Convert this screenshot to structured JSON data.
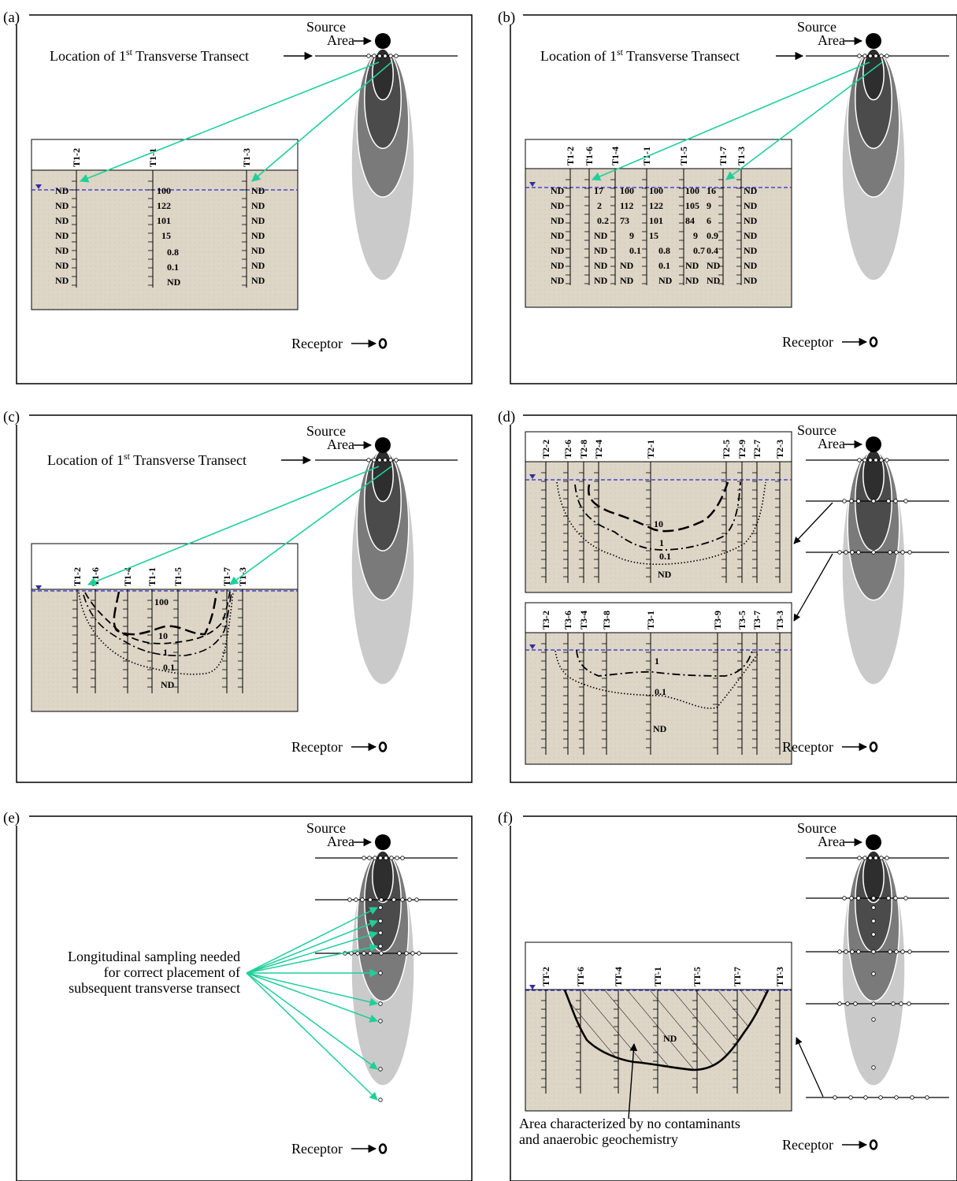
{
  "colors": {
    "soil": "#ddd5c6",
    "arrow_cyan": "#1fcf9a",
    "water_table": "#2a2ad0",
    "plume": [
      "#cacaca",
      "#7a7a7a",
      "#4b4b4b",
      "#2e2e2e"
    ]
  },
  "labels": {
    "source_top": "Source",
    "source_bottom": "Area",
    "receptor": "Receptor",
    "transect": "Location of 1",
    "transect_sup": "st",
    "transect_tail": " Transverse Transect",
    "long_1": "Longitudinal sampling needed",
    "long_2": "for correct placement of",
    "long_3": "subsequent transverse transect",
    "area_1": "Area characterized by no contaminants",
    "area_2": "and anaerobic geochemistry"
  },
  "panels": [
    {
      "letter": "(a)"
    },
    {
      "letter": "(b)"
    },
    {
      "letter": "(c)"
    },
    {
      "letter": "(d)"
    },
    {
      "letter": "(e)"
    },
    {
      "letter": "(f)"
    }
  ],
  "a": {
    "wells": [
      "T1-2",
      "T1-1",
      "T1-3"
    ],
    "values": {
      "T1-2": [
        "ND",
        "ND",
        "ND",
        "ND",
        "ND",
        "ND",
        "ND"
      ],
      "T1-1": [
        "100",
        "122",
        "101",
        "15",
        "0.8",
        "0.1",
        "ND"
      ],
      "T1-3": [
        "ND",
        "ND",
        "ND",
        "ND",
        "ND",
        "ND",
        "ND"
      ]
    }
  },
  "b": {
    "wells": [
      "T1-2",
      "T1-6",
      "T1-4",
      "T1-1",
      "T1-5",
      "T1-7",
      "T1-3"
    ],
    "values": {
      "T1-2": [
        "ND",
        "ND",
        "ND",
        "ND",
        "ND",
        "ND",
        "ND"
      ],
      "T1-6": [
        "17",
        "2",
        "0.2",
        "ND",
        "ND",
        "ND",
        "ND"
      ],
      "T1-4": [
        "100",
        "112",
        "73",
        "9",
        "0.1",
        "ND",
        "ND"
      ],
      "T1-1": [
        "100",
        "122",
        "101",
        "15",
        "0.8",
        "0.1",
        "ND"
      ],
      "T1-5": [
        "100",
        "105",
        "84",
        "9",
        "0.7",
        "ND",
        "ND"
      ],
      "T1-7": [
        "16",
        "9",
        "6",
        "0.9",
        "0.4",
        "ND",
        "ND"
      ],
      "T1-3": [
        "ND",
        "ND",
        "ND",
        "ND",
        "ND",
        "ND",
        "ND"
      ]
    }
  },
  "c": {
    "wells": [
      "T1-2",
      "T1-6",
      "T1-4",
      "T1-1",
      "T1-5",
      "T1-7",
      "T1-3"
    ],
    "contours": [
      "100",
      "10",
      "1",
      "0.1",
      "ND"
    ]
  },
  "d": {
    "wells_top": [
      "T2-2",
      "T2-6",
      "T2-8",
      "T2-4",
      "T2-1",
      "T2-5",
      "T2-9",
      "T2-7",
      "T2-3"
    ],
    "contours_top": [
      "10",
      "1",
      "0.1",
      "ND"
    ],
    "wells_bottom": [
      "T3-2",
      "T3-6",
      "T3-4",
      "T3-8",
      "T3-1",
      "T3-9",
      "T3-5",
      "T3-7",
      "T3-3"
    ],
    "contours_bottom": [
      "1",
      "0.1",
      "ND"
    ]
  },
  "f": {
    "wells": [
      "TT-2",
      "TT-6",
      "TT-4",
      "TT-1",
      "TT-5",
      "TT-7",
      "TT-3"
    ],
    "area_value": "ND"
  }
}
